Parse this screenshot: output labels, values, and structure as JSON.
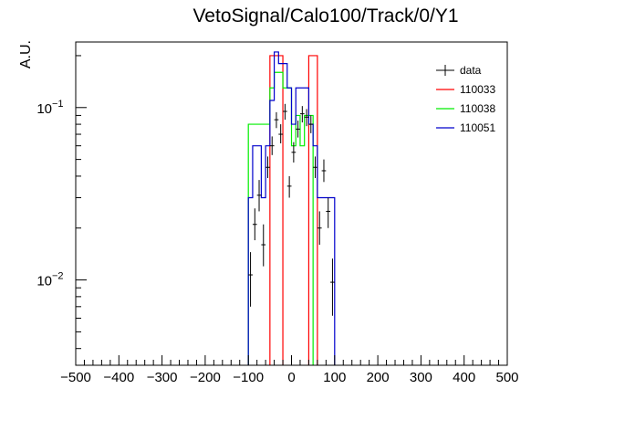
{
  "chart_data": {
    "type": "histogram",
    "title": "VetoSignal/Calo100/Track/0/Y1",
    "xlabel": "",
    "ylabel": "A.U.",
    "xlim": [
      -500,
      500
    ],
    "ylim": [
      0.0032,
      0.24
    ],
    "yscale": "log",
    "grid": false,
    "legend_position": "top-right",
    "x_ticks": [
      -500,
      -400,
      -300,
      -200,
      -100,
      0,
      100,
      200,
      300,
      400,
      500
    ],
    "y_ticks": [
      {
        "value": 0.01,
        "base": "10",
        "exp": "−2"
      },
      {
        "value": 0.1,
        "base": "10",
        "exp": "−1"
      }
    ],
    "bin_width": 10,
    "series": [
      {
        "name": "data",
        "color": "#000000",
        "style": "points",
        "points": [
          {
            "x": -95,
            "y": 0.0107,
            "lo": 0.007,
            "hi": 0.0145
          },
          {
            "x": -85,
            "y": 0.021,
            "lo": 0.017,
            "hi": 0.026
          },
          {
            "x": -75,
            "y": 0.031,
            "lo": 0.025,
            "hi": 0.038
          },
          {
            "x": -65,
            "y": 0.016,
            "lo": 0.012,
            "hi": 0.021
          },
          {
            "x": -55,
            "y": 0.045,
            "lo": 0.039,
            "hi": 0.052
          },
          {
            "x": -45,
            "y": 0.06,
            "lo": 0.053,
            "hi": 0.068
          },
          {
            "x": -35,
            "y": 0.085,
            "lo": 0.076,
            "hi": 0.094
          },
          {
            "x": -25,
            "y": 0.07,
            "lo": 0.062,
            "hi": 0.08
          },
          {
            "x": -15,
            "y": 0.095,
            "lo": 0.085,
            "hi": 0.105
          },
          {
            "x": -5,
            "y": 0.035,
            "lo": 0.03,
            "hi": 0.04
          },
          {
            "x": 5,
            "y": 0.055,
            "lo": 0.048,
            "hi": 0.063
          },
          {
            "x": 15,
            "y": 0.075,
            "lo": 0.067,
            "hi": 0.084
          },
          {
            "x": 25,
            "y": 0.092,
            "lo": 0.082,
            "hi": 0.102
          },
          {
            "x": 35,
            "y": 0.088,
            "lo": 0.078,
            "hi": 0.098
          },
          {
            "x": 45,
            "y": 0.08,
            "lo": 0.071,
            "hi": 0.09
          },
          {
            "x": 55,
            "y": 0.045,
            "lo": 0.039,
            "hi": 0.052
          },
          {
            "x": 65,
            "y": 0.02,
            "lo": 0.016,
            "hi": 0.025
          },
          {
            "x": 75,
            "y": 0.043,
            "lo": 0.037,
            "hi": 0.05
          },
          {
            "x": 85,
            "y": 0.025,
            "lo": 0.02,
            "hi": 0.03
          },
          {
            "x": 95,
            "y": 0.0097,
            "lo": 0.0062,
            "hi": 0.0133
          }
        ]
      },
      {
        "name": "110033",
        "color": "#ff0000",
        "style": "step",
        "bins": [
          [
            -50,
            0.2
          ],
          [
            -40,
            0.2
          ],
          [
            -30,
            0.2
          ],
          [
            40,
            0.2
          ],
          [
            50,
            0.2
          ]
        ]
      },
      {
        "name": "110038",
        "color": "#00ee00",
        "style": "step",
        "bins": [
          [
            -100,
            0.08
          ],
          [
            -90,
            0.08
          ],
          [
            -80,
            0.08
          ],
          [
            -70,
            0.08
          ],
          [
            -60,
            0.08
          ],
          [
            -50,
            0.13
          ],
          [
            -40,
            0.16
          ],
          [
            -30,
            0.16
          ],
          [
            -20,
            0.13
          ],
          [
            -10,
            0.13
          ],
          [
            0,
            0.06
          ],
          [
            10,
            0.09
          ],
          [
            20,
            0.06
          ],
          [
            30,
            0.09
          ],
          [
            40,
            0.09
          ]
        ]
      },
      {
        "name": "110051",
        "color": "#0000cc",
        "style": "step",
        "bins": [
          [
            -100,
            0.03
          ],
          [
            -90,
            0.06
          ],
          [
            -80,
            0.06
          ],
          [
            -70,
            0.03
          ],
          [
            -60,
            0.06
          ],
          [
            -50,
            0.11
          ],
          [
            -40,
            0.21
          ],
          [
            -30,
            0.18
          ],
          [
            -20,
            0.18
          ],
          [
            -10,
            0.13
          ],
          [
            0,
            0.08
          ],
          [
            10,
            0.13
          ],
          [
            20,
            0.13
          ],
          [
            30,
            0.13
          ],
          [
            40,
            0.08
          ],
          [
            50,
            0.06
          ],
          [
            60,
            0.03
          ],
          [
            70,
            0.03
          ],
          [
            80,
            0.03
          ],
          [
            90,
            0.03
          ]
        ]
      }
    ]
  }
}
